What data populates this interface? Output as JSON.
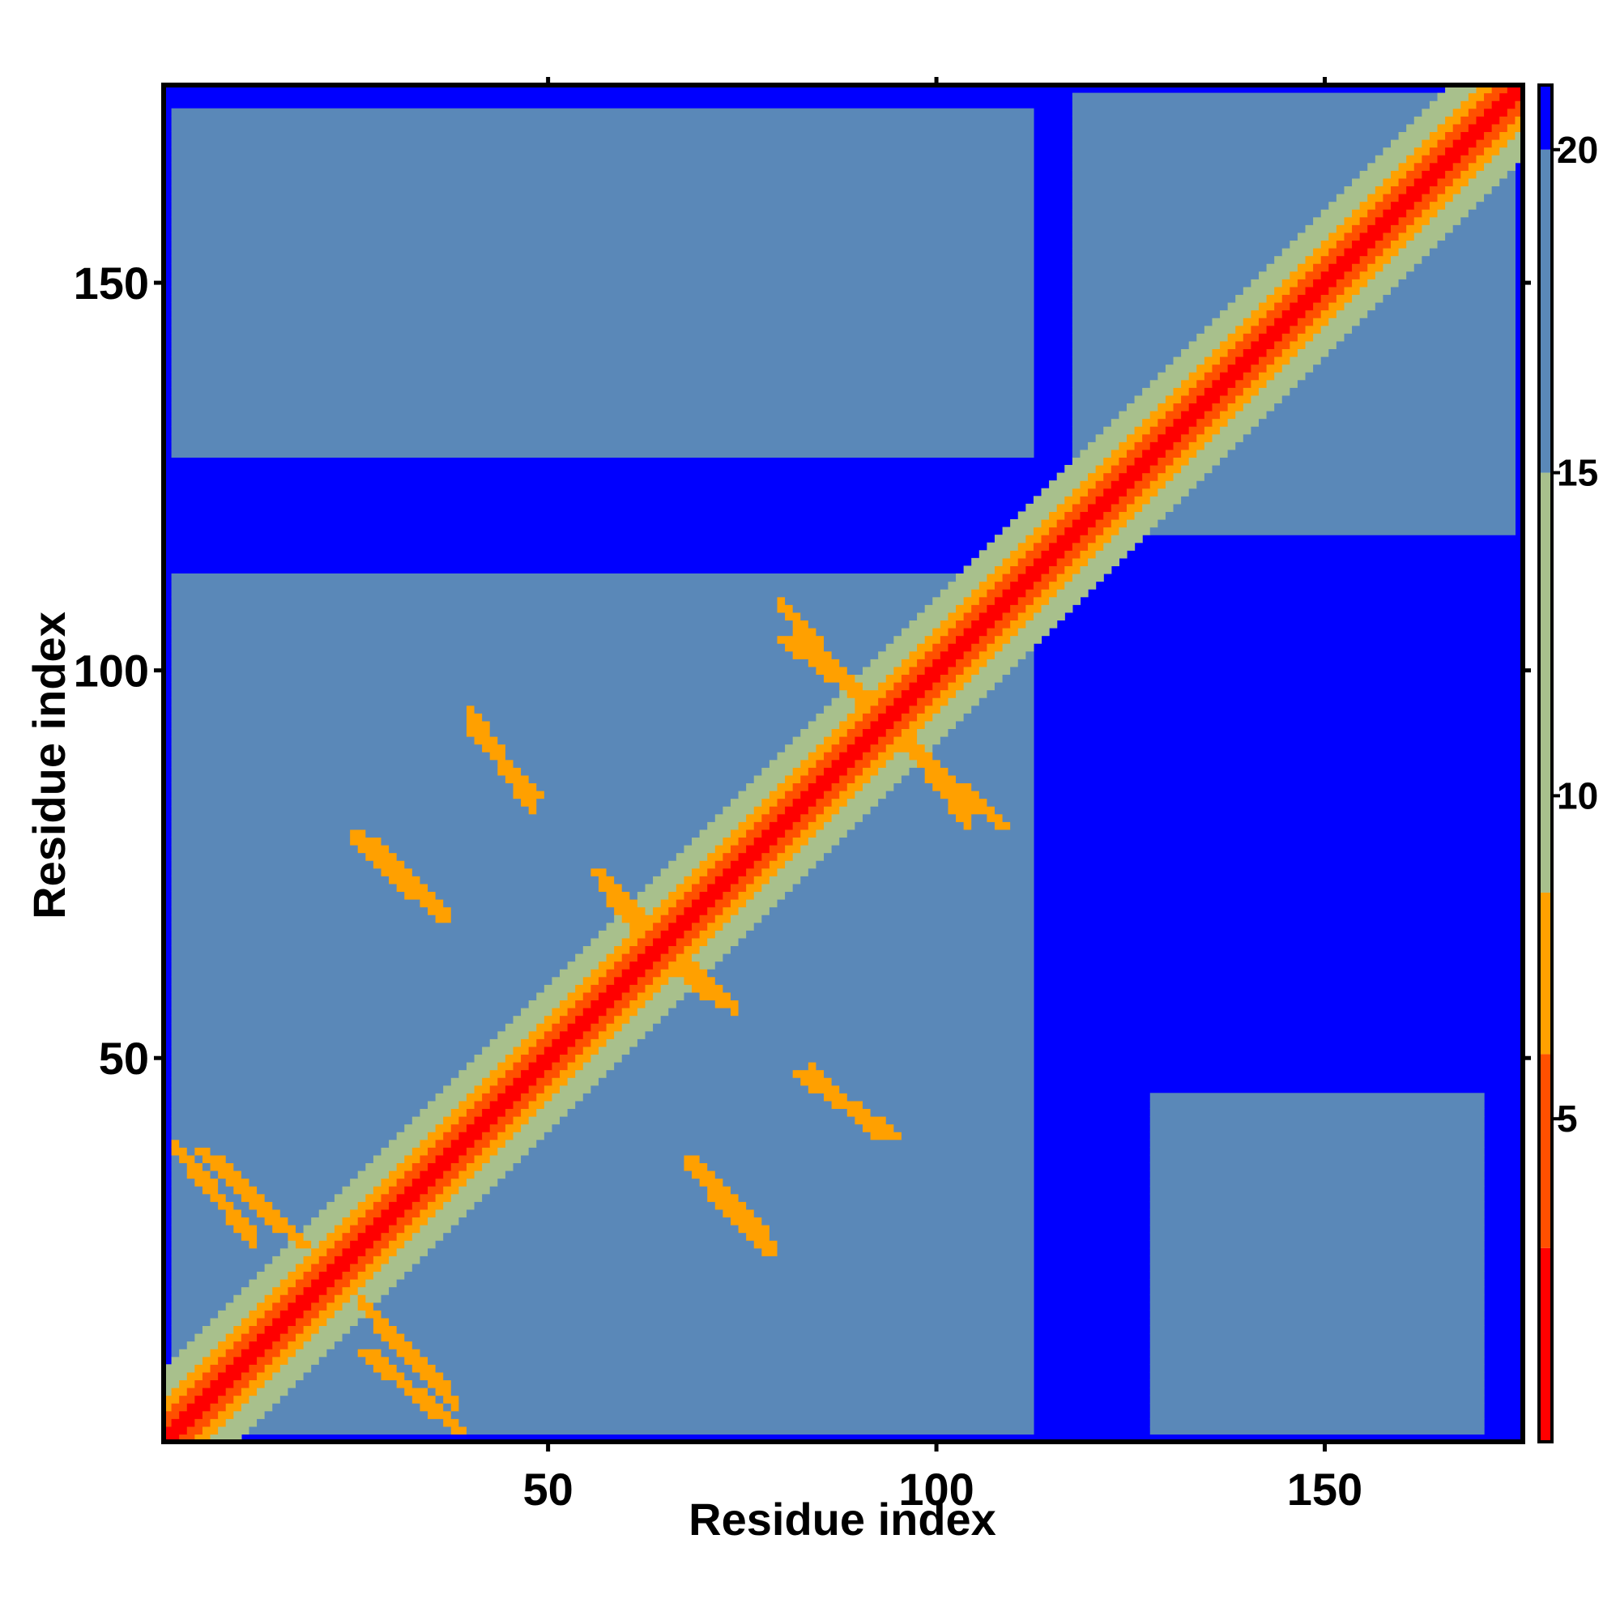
{
  "chart_data": {
    "type": "heatmap",
    "title": "",
    "xlabel": "Residue index",
    "ylabel": "Residue index",
    "n_residues": 175,
    "x_ticks": [
      50,
      100,
      150
    ],
    "y_ticks": [
      50,
      100,
      150
    ],
    "xlim": [
      1,
      175
    ],
    "ylim": [
      1,
      175
    ],
    "colorbar": {
      "ticks": [
        5,
        10,
        15,
        20
      ],
      "range": [
        0,
        21
      ],
      "colors": {
        "lt_3": "#ff0000",
        "3_to_6": "#ff5000",
        "6_to_8.5": "#ffa000",
        "8.5_to_15": "#a8c08c",
        "15_to_20": "#5a88b8",
        "gt_20": "#0000ff"
      }
    },
    "background_color": "#0000ff",
    "blocks": [
      {
        "x": [
          2,
          112
        ],
        "y": [
          2,
          112
        ],
        "value": 17
      },
      {
        "x": [
          118,
          174
        ],
        "y": [
          118,
          174
        ],
        "value": 17
      },
      {
        "x": [
          128,
          170
        ],
        "y": [
          2,
          45
        ],
        "value": 17
      },
      {
        "x": [
          2,
          112
        ],
        "y": [
          128,
          172
        ],
        "value": 17
      }
    ],
    "contact_stripes": [
      {
        "from": [
          5,
          38
        ],
        "to": [
          18,
          26
        ],
        "value": 6
      },
      {
        "from": [
          26,
          12
        ],
        "to": [
          38,
          2
        ],
        "value": 6
      },
      {
        "from": [
          26,
          78
        ],
        "to": [
          36,
          68
        ],
        "value": 6
      },
      {
        "from": [
          40,
          92
        ],
        "to": [
          48,
          84
        ],
        "value": 6
      },
      {
        "from": [
          56,
          74
        ],
        "to": [
          70,
          58
        ],
        "value": 6
      },
      {
        "from": [
          68,
          36
        ],
        "to": [
          78,
          25
        ],
        "value": 6
      },
      {
        "from": [
          82,
          48
        ],
        "to": [
          94,
          40
        ],
        "value": 6
      },
      {
        "from": [
          80,
          104
        ],
        "to": [
          92,
          95
        ],
        "value": 6
      },
      {
        "from": [
          96,
          90
        ],
        "to": [
          108,
          80
        ],
        "value": 6
      }
    ]
  }
}
